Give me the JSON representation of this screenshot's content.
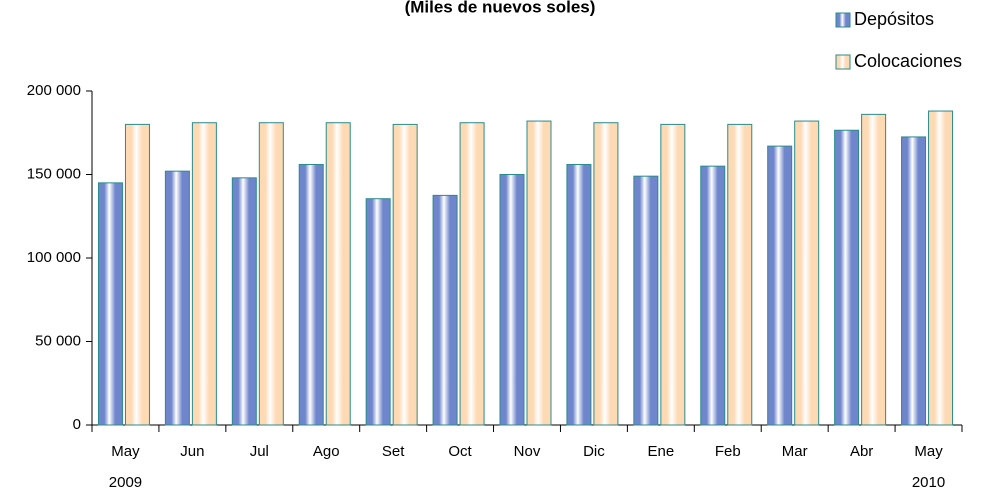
{
  "chart_data": {
    "type": "bar",
    "subtitle": "(Miles de nuevos soles)",
    "categories": [
      "May",
      "Jun",
      "Jul",
      "Ago",
      "Set",
      "Oct",
      "Nov",
      "Dic",
      "Ene",
      "Feb",
      "Mar",
      "Abr",
      "May"
    ],
    "category_years": [
      "2009",
      null,
      null,
      null,
      null,
      null,
      null,
      null,
      null,
      null,
      null,
      null,
      "2010"
    ],
    "series": [
      {
        "name": "Depósitos",
        "color": "#6f86cc",
        "values": [
          145000,
          152000,
          148000,
          156000,
          135500,
          137500,
          150000,
          156000,
          149000,
          155000,
          167000,
          176500,
          172500
        ]
      },
      {
        "name": "Colocaciones",
        "color": "#fdd9b4",
        "values": [
          180000,
          181000,
          181000,
          181000,
          180000,
          181000,
          182000,
          181000,
          180000,
          180000,
          182000,
          186000,
          188000
        ]
      }
    ],
    "ylim": [
      0,
      200000
    ],
    "yticks": [
      0,
      {
        "value": 50000,
        "label": "50 000"
      },
      {
        "value": 100000,
        "label": "100 000"
      },
      {
        "value": 150000,
        "label": "150 000"
      },
      {
        "value": 200000,
        "label": "200 000"
      }
    ],
    "legend": "top-right",
    "grid": false
  }
}
